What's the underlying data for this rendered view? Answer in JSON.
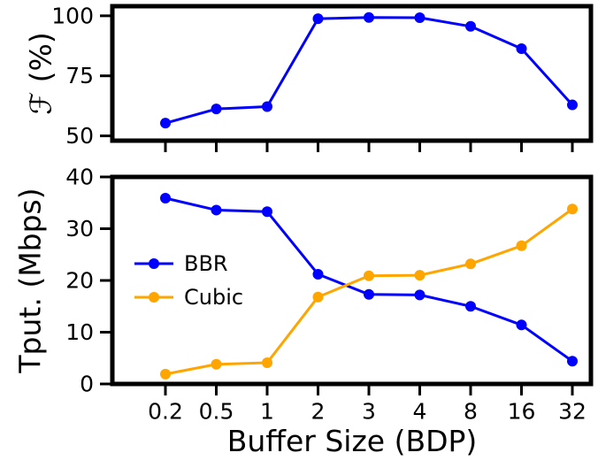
{
  "chart_data": [
    {
      "type": "line",
      "ylabel": "ℱ (%)",
      "xlabel": "",
      "categories": [
        "0.2",
        "0.5",
        "1",
        "2",
        "3",
        "4",
        "8",
        "16",
        "32"
      ],
      "ylim": [
        48,
        104
      ],
      "yticks": [
        "50",
        "75",
        "100"
      ],
      "grid": false,
      "series": [
        {
          "name": "",
          "color": "#0000ff",
          "values": [
            55.3,
            61.2,
            62.2,
            98.8,
            99.3,
            99.2,
            95.6,
            86.3,
            62.9
          ]
        }
      ]
    },
    {
      "type": "line",
      "ylabel": "Tput. (Mbps)",
      "xlabel": "Buffer Size (BDP)",
      "categories": [
        "0.2",
        "0.5",
        "1",
        "2",
        "3",
        "4",
        "8",
        "16",
        "32"
      ],
      "ylim": [
        0,
        40
      ],
      "yticks": [
        "0",
        "10",
        "20",
        "30",
        "40"
      ],
      "grid": false,
      "legend_position": "center-left",
      "series": [
        {
          "name": "BBR",
          "color": "#0000ff",
          "values": [
            35.9,
            33.6,
            33.3,
            21.2,
            17.3,
            17.2,
            15.0,
            11.4,
            4.4
          ]
        },
        {
          "name": "Cubic",
          "color": "#ffa500",
          "values": [
            1.9,
            3.8,
            4.1,
            16.8,
            20.9,
            21.0,
            23.2,
            26.7,
            33.8
          ]
        }
      ]
    }
  ]
}
